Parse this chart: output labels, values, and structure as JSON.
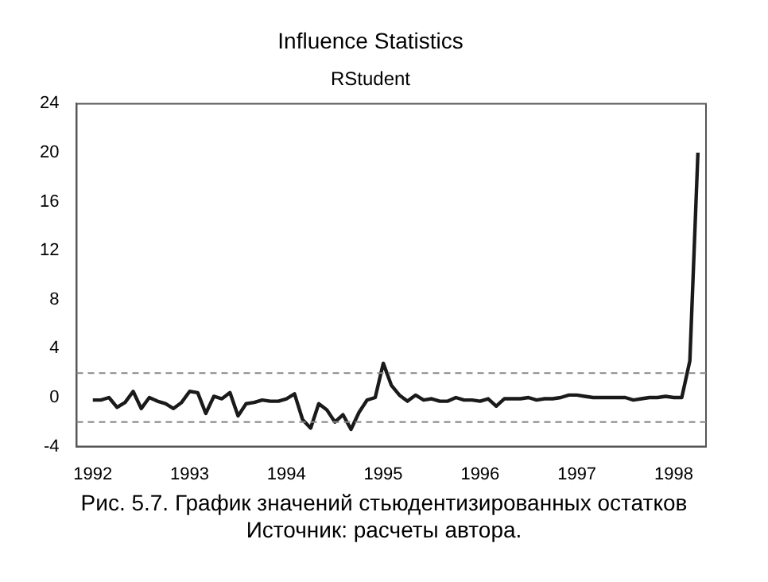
{
  "chart_data": {
    "type": "line",
    "title": "Influence Statistics",
    "subtitle": "RStudent",
    "x": [
      "1992-01",
      "1992-02",
      "1992-03",
      "1992-04",
      "1992-05",
      "1992-06",
      "1992-07",
      "1992-08",
      "1992-09",
      "1992-10",
      "1992-11",
      "1992-12",
      "1993-01",
      "1993-02",
      "1993-03",
      "1993-04",
      "1993-05",
      "1993-06",
      "1993-07",
      "1993-08",
      "1993-09",
      "1993-10",
      "1993-11",
      "1993-12",
      "1994-01",
      "1994-02",
      "1994-03",
      "1994-04",
      "1994-05",
      "1994-06",
      "1994-07",
      "1994-08",
      "1994-09",
      "1994-10",
      "1994-11",
      "1994-12",
      "1995-01",
      "1995-02",
      "1995-03",
      "1995-04",
      "1995-05",
      "1995-06",
      "1995-07",
      "1995-08",
      "1995-09",
      "1995-10",
      "1995-11",
      "1995-12",
      "1996-01",
      "1996-02",
      "1996-03",
      "1996-04",
      "1996-05",
      "1996-06",
      "1996-07",
      "1996-08",
      "1996-09",
      "1996-10",
      "1996-11",
      "1996-12",
      "1997-01",
      "1997-02",
      "1997-03",
      "1997-04",
      "1997-05",
      "1997-06",
      "1997-07",
      "1997-08",
      "1997-09",
      "1997-10",
      "1997-11",
      "1997-12",
      "1998-01",
      "1998-02",
      "1998-03",
      "1998-04"
    ],
    "series": [
      {
        "color": "#1a1a1a",
        "values": [
          -0.2,
          -0.2,
          0.0,
          -0.8,
          -0.4,
          0.5,
          -0.9,
          0.0,
          -0.3,
          -0.5,
          -0.9,
          -0.4,
          0.5,
          0.4,
          -1.3,
          0.1,
          -0.1,
          0.4,
          -1.5,
          -0.5,
          -0.4,
          -0.2,
          -0.3,
          -0.3,
          -0.1,
          0.3,
          -1.8,
          -2.5,
          -0.5,
          -1.0,
          -2.0,
          -1.4,
          -2.6,
          -1.2,
          -0.2,
          0.0,
          2.8,
          1.0,
          0.2,
          -0.3,
          0.2,
          -0.2,
          -0.1,
          -0.3,
          -0.3,
          0.0,
          -0.2,
          -0.2,
          -0.3,
          -0.1,
          -0.7,
          -0.1,
          -0.1,
          -0.1,
          0.0,
          -0.2,
          -0.1,
          -0.1,
          0.0,
          0.2,
          0.2,
          0.1,
          0.0,
          0.0,
          0.0,
          0.0,
          0.0,
          -0.2,
          -0.1,
          0.0,
          0.0,
          0.1,
          0.0,
          0.0,
          3.0,
          20.0
        ]
      }
    ],
    "xlim": [
      "1991-11",
      "1998-05"
    ],
    "xticks": [
      {
        "value": "1992",
        "label": "1992"
      },
      {
        "value": "1993",
        "label": "1993"
      },
      {
        "value": "1994",
        "label": "1994"
      },
      {
        "value": "1995",
        "label": "1995"
      },
      {
        "value": "1996",
        "label": "1996"
      },
      {
        "value": "1997",
        "label": "1997"
      },
      {
        "value": "1998",
        "label": "1998"
      }
    ],
    "ylim": [
      -4,
      24
    ],
    "yticks": [
      -4,
      0,
      4,
      8,
      12,
      16,
      20,
      24
    ],
    "ref_lines": [
      {
        "axis": "y",
        "value": 2,
        "line_style": "dashed",
        "color": "#888888"
      },
      {
        "axis": "y",
        "value": -2,
        "line_style": "dashed",
        "color": "#888888"
      }
    ],
    "grid": false,
    "legend": false,
    "marker": "none",
    "line_style": "solid",
    "annotations": [
      "Рис. 5.7. График значений стьюдентизированных остатков",
      "Источник: расчеты автора."
    ]
  }
}
